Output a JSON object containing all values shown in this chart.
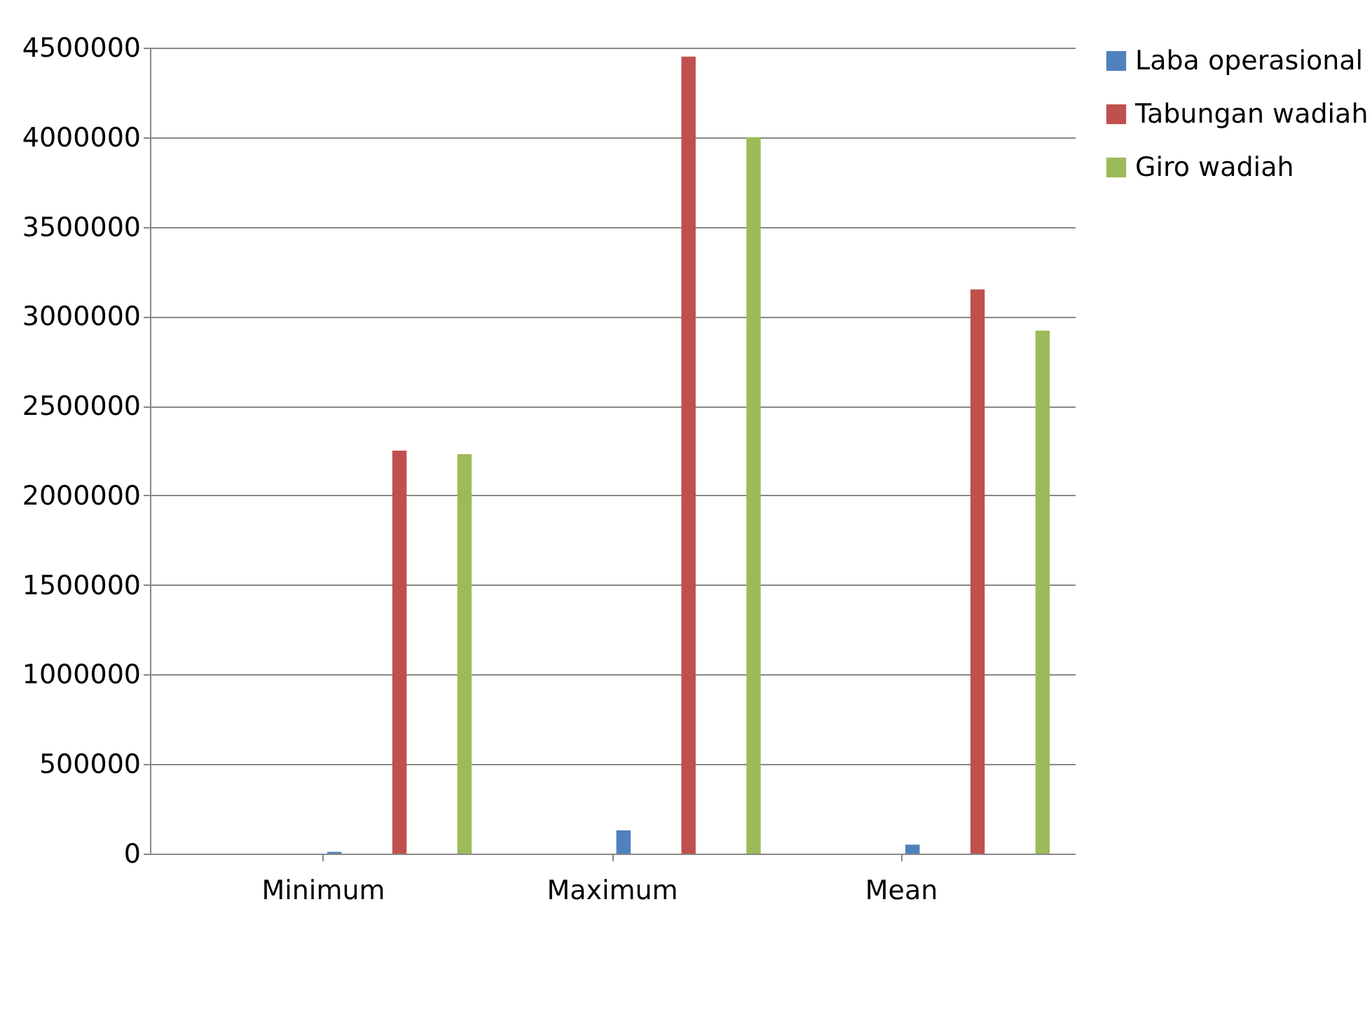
{
  "chart_data": {
    "type": "bar",
    "categories": [
      "Minimum",
      "Maximum",
      "Mean"
    ],
    "series": [
      {
        "name": "Laba operasional",
        "color": "#4f81bd",
        "values": [
          10000,
          130000,
          50000
        ]
      },
      {
        "name": "Tabungan wadiah",
        "color": "#c0504d",
        "values": [
          2250000,
          4450000,
          3150000
        ]
      },
      {
        "name": "Giro wadiah",
        "color": "#9bbb59",
        "values": [
          2230000,
          4000000,
          2920000
        ]
      }
    ],
    "ylim": [
      0,
      4500000
    ],
    "yticks": [
      0,
      500000,
      1000000,
      1500000,
      2000000,
      2500000,
      3000000,
      3500000,
      4000000,
      4500000
    ],
    "grid": "y",
    "legend": "right"
  }
}
